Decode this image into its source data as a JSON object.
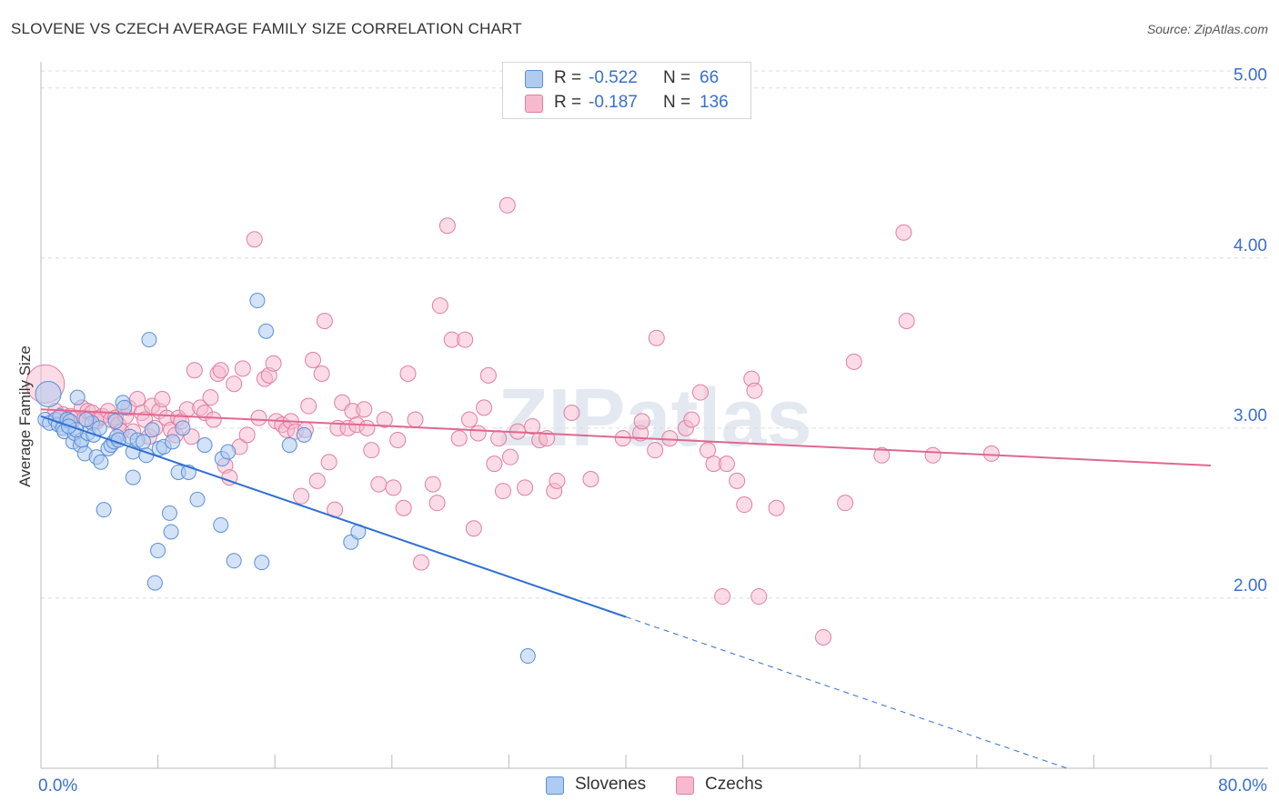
{
  "title": "SLOVENE VS CZECH AVERAGE FAMILY SIZE CORRELATION CHART",
  "source": "Source: ZipAtlas.com",
  "watermark": "ZIPatlas",
  "legend": {
    "rows": [
      {
        "r_label": "R =",
        "r_value": "-0.522",
        "n_label": "N =",
        "n_value": "66"
      },
      {
        "r_label": "R =",
        "r_value": "-0.187",
        "n_label": "N =",
        "n_value": "136"
      }
    ]
  },
  "colors": {
    "slovene_fill": "#aecbf0",
    "slovene_stroke": "#5b8fd6",
    "slovene_line": "#2f6fd4",
    "czech_fill": "#f7b9ce",
    "czech_stroke": "#e07fa0",
    "czech_line": "#e0688f",
    "axis_text": "#3a6fd0"
  },
  "chart_data": {
    "type": "scatter",
    "title": "SLOVENE VS CZECH AVERAGE FAMILY SIZE CORRELATION CHART",
    "xlabel": "",
    "ylabel": "Average Family Size",
    "xlim": [
      0,
      80
    ],
    "ylim": [
      1.0,
      5.1
    ],
    "x_tick_labels": [
      "0.0%",
      "80.0%"
    ],
    "y_ticks": [
      2.0,
      3.0,
      4.0,
      5.0
    ],
    "y_tick_labels": [
      "2.00",
      "3.00",
      "4.00",
      "5.00"
    ],
    "grid": true,
    "series": [
      {
        "name": "Slovenes",
        "r": -0.522,
        "n": 66,
        "trend": {
          "x0": 0,
          "y0": 3.07,
          "x1": 40,
          "y1": 1.89,
          "dashed_to_x": 80,
          "dashed_to_y": 0.71
        },
        "points": [
          [
            0.3,
            3.05
          ],
          [
            0.5,
            3.2
          ],
          [
            0.6,
            3.03
          ],
          [
            1.0,
            3.05
          ],
          [
            1.2,
            3.02
          ],
          [
            1.3,
            3.07
          ],
          [
            1.5,
            3.0
          ],
          [
            1.6,
            2.98
          ],
          [
            1.8,
            3.05
          ],
          [
            2.0,
            3.04
          ],
          [
            2.2,
            2.92
          ],
          [
            2.3,
            2.97
          ],
          [
            2.5,
            3.18
          ],
          [
            2.7,
            2.9
          ],
          [
            2.8,
            2.93
          ],
          [
            3.0,
            2.85
          ],
          [
            3.2,
            2.97
          ],
          [
            3.5,
            3.03
          ],
          [
            3.6,
            2.96
          ],
          [
            3.8,
            2.83
          ],
          [
            4.0,
            3.0
          ],
          [
            4.1,
            2.8
          ],
          [
            4.3,
            2.52
          ],
          [
            4.6,
            2.88
          ],
          [
            4.8,
            2.9
          ],
          [
            5.0,
            2.92
          ],
          [
            5.1,
            3.04
          ],
          [
            5.2,
            2.95
          ],
          [
            5.6,
            3.15
          ],
          [
            5.7,
            3.12
          ],
          [
            6.1,
            2.95
          ],
          [
            6.3,
            2.86
          ],
          [
            6.3,
            2.71
          ],
          [
            6.6,
            2.93
          ],
          [
            7.0,
            2.92
          ],
          [
            7.2,
            2.84
          ],
          [
            7.4,
            3.52
          ],
          [
            7.6,
            2.99
          ],
          [
            7.8,
            2.09
          ],
          [
            8.0,
            2.28
          ],
          [
            8.1,
            2.88
          ],
          [
            8.4,
            2.89
          ],
          [
            8.8,
            2.5
          ],
          [
            8.9,
            2.39
          ],
          [
            9.4,
            2.74
          ],
          [
            9.7,
            3.0
          ],
          [
            10.1,
            2.74
          ],
          [
            10.7,
            2.58
          ],
          [
            11.2,
            2.9
          ],
          [
            12.3,
            2.43
          ],
          [
            12.4,
            2.82
          ],
          [
            12.8,
            2.86
          ],
          [
            13.2,
            2.22
          ],
          [
            14.8,
            3.75
          ],
          [
            15.1,
            2.21
          ],
          [
            15.4,
            3.57
          ],
          [
            17.0,
            2.9
          ],
          [
            18.0,
            2.96
          ],
          [
            21.2,
            2.33
          ],
          [
            21.7,
            2.39
          ],
          [
            33.3,
            1.66
          ],
          [
            5.3,
            2.93
          ],
          [
            3.1,
            3.05
          ],
          [
            2.4,
            2.99
          ],
          [
            9.0,
            2.92
          ],
          [
            1.9,
            3.01
          ]
        ]
      },
      {
        "name": "Czechs",
        "r": -0.187,
        "n": 136,
        "trend": {
          "x0": 0,
          "y0": 3.11,
          "x1": 80,
          "y1": 2.78
        },
        "points": [
          [
            0.3,
            3.26
          ],
          [
            1.0,
            3.1
          ],
          [
            1.5,
            3.08
          ],
          [
            1.8,
            3.05
          ],
          [
            2.0,
            3.07
          ],
          [
            2.4,
            3.06
          ],
          [
            2.8,
            3.12
          ],
          [
            3.0,
            3.06
          ],
          [
            3.2,
            3.1
          ],
          [
            3.5,
            3.09
          ],
          [
            3.8,
            3.04
          ],
          [
            4.0,
            3.06
          ],
          [
            4.2,
            3.07
          ],
          [
            4.6,
            3.1
          ],
          [
            4.8,
            3.05
          ],
          [
            5.1,
            3.06
          ],
          [
            5.3,
            3.02
          ],
          [
            5.5,
            2.98
          ],
          [
            5.8,
            3.07
          ],
          [
            6.0,
            3.12
          ],
          [
            6.3,
            2.98
          ],
          [
            6.6,
            3.17
          ],
          [
            6.9,
            3.09
          ],
          [
            7.1,
            3.05
          ],
          [
            7.4,
            2.95
          ],
          [
            7.6,
            3.13
          ],
          [
            7.8,
            3.0
          ],
          [
            8.1,
            3.1
          ],
          [
            8.3,
            3.17
          ],
          [
            8.6,
            3.06
          ],
          [
            8.9,
            2.99
          ],
          [
            9.2,
            2.96
          ],
          [
            9.4,
            3.06
          ],
          [
            9.6,
            3.04
          ],
          [
            10.0,
            3.11
          ],
          [
            10.3,
            2.95
          ],
          [
            10.5,
            3.34
          ],
          [
            10.9,
            3.12
          ],
          [
            11.2,
            3.09
          ],
          [
            11.6,
            3.18
          ],
          [
            11.8,
            3.05
          ],
          [
            12.1,
            3.32
          ],
          [
            12.3,
            3.34
          ],
          [
            12.6,
            2.78
          ],
          [
            12.9,
            2.71
          ],
          [
            13.2,
            3.26
          ],
          [
            13.6,
            2.89
          ],
          [
            13.8,
            3.35
          ],
          [
            14.1,
            2.96
          ],
          [
            14.6,
            4.11
          ],
          [
            14.9,
            3.06
          ],
          [
            15.3,
            3.29
          ],
          [
            15.6,
            3.31
          ],
          [
            15.9,
            3.38
          ],
          [
            16.1,
            3.04
          ],
          [
            16.5,
            3.02
          ],
          [
            16.8,
            2.99
          ],
          [
            17.1,
            3.04
          ],
          [
            17.4,
            2.98
          ],
          [
            17.8,
            2.6
          ],
          [
            18.1,
            2.99
          ],
          [
            18.3,
            3.13
          ],
          [
            18.6,
            3.4
          ],
          [
            18.9,
            2.69
          ],
          [
            19.2,
            3.32
          ],
          [
            19.4,
            3.63
          ],
          [
            19.7,
            2.8
          ],
          [
            20.1,
            2.52
          ],
          [
            20.3,
            3.0
          ],
          [
            20.6,
            3.15
          ],
          [
            21.0,
            3.0
          ],
          [
            21.3,
            3.1
          ],
          [
            21.6,
            3.02
          ],
          [
            22.1,
            3.11
          ],
          [
            22.3,
            3.0
          ],
          [
            22.6,
            2.87
          ],
          [
            23.1,
            2.67
          ],
          [
            23.5,
            3.05
          ],
          [
            24.1,
            2.65
          ],
          [
            24.4,
            2.93
          ],
          [
            24.8,
            2.53
          ],
          [
            25.1,
            3.32
          ],
          [
            25.6,
            3.05
          ],
          [
            26.0,
            2.21
          ],
          [
            26.8,
            2.67
          ],
          [
            27.1,
            2.56
          ],
          [
            27.3,
            3.72
          ],
          [
            27.8,
            4.19
          ],
          [
            28.1,
            3.52
          ],
          [
            28.6,
            2.94
          ],
          [
            29.0,
            3.52
          ],
          [
            29.3,
            3.05
          ],
          [
            29.6,
            2.41
          ],
          [
            29.9,
            2.97
          ],
          [
            30.3,
            3.12
          ],
          [
            30.6,
            3.31
          ],
          [
            31.0,
            2.79
          ],
          [
            31.3,
            2.94
          ],
          [
            31.6,
            2.63
          ],
          [
            31.9,
            4.31
          ],
          [
            32.1,
            2.83
          ],
          [
            32.6,
            2.98
          ],
          [
            33.1,
            2.65
          ],
          [
            33.6,
            3.01
          ],
          [
            34.1,
            2.93
          ],
          [
            34.6,
            2.94
          ],
          [
            35.1,
            2.63
          ],
          [
            35.3,
            2.69
          ],
          [
            36.3,
            3.09
          ],
          [
            37.6,
            2.7
          ],
          [
            39.8,
            2.94
          ],
          [
            41.0,
            2.97
          ],
          [
            41.1,
            3.04
          ],
          [
            42.0,
            2.87
          ],
          [
            42.1,
            3.53
          ],
          [
            43.0,
            2.94
          ],
          [
            44.1,
            3.0
          ],
          [
            44.5,
            3.05
          ],
          [
            45.1,
            3.21
          ],
          [
            45.6,
            2.87
          ],
          [
            46.0,
            2.79
          ],
          [
            46.6,
            2.01
          ],
          [
            46.9,
            2.79
          ],
          [
            47.6,
            2.69
          ],
          [
            48.1,
            2.55
          ],
          [
            48.6,
            3.29
          ],
          [
            48.8,
            3.22
          ],
          [
            49.1,
            2.01
          ],
          [
            50.3,
            2.53
          ],
          [
            53.5,
            1.77
          ],
          [
            55.0,
            2.56
          ],
          [
            55.6,
            3.39
          ],
          [
            57.5,
            2.84
          ],
          [
            59.0,
            4.15
          ],
          [
            59.2,
            3.63
          ],
          [
            61.0,
            2.84
          ],
          [
            65.0,
            2.85
          ]
        ]
      }
    ]
  }
}
